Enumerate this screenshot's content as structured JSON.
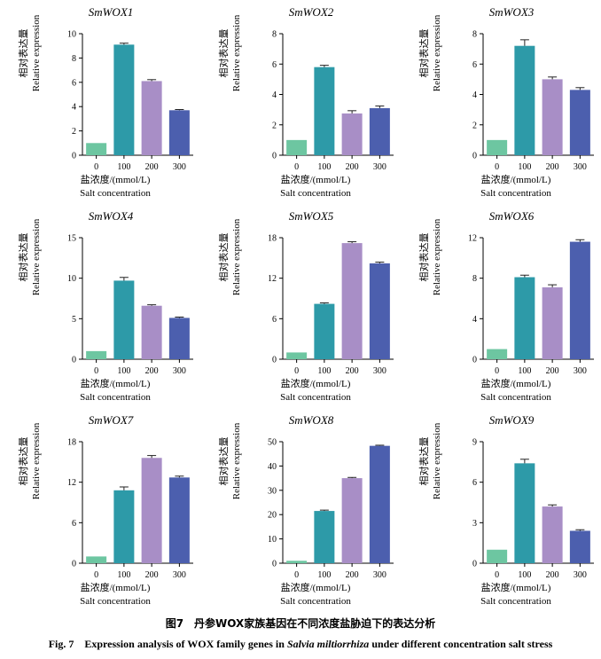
{
  "figure": {
    "caption_cn": "图7　丹参WOX家族基因在不同浓度盐胁迫下的表达分析",
    "caption_en_prefix": "Fig. 7　Expression analysis of WOX family genes in ",
    "caption_en_species": "Salvia miltiorrhiza",
    "caption_en_suffix": " under different concentration salt stress",
    "ylabel_cn": "相对表达量",
    "ylabel_en": "Relative expression",
    "xlabel_cn": "盐浓度/(mmol/L)",
    "xlabel_en": "Salt concentration",
    "bar_colors": [
      "#6dc6a1",
      "#2d9aa8",
      "#a88ec6",
      "#4c5fae"
    ]
  },
  "chart_data": [
    {
      "type": "bar",
      "title": "SmWOX1",
      "categories": [
        "0",
        "100",
        "200",
        "300"
      ],
      "values": [
        1.0,
        9.1,
        6.1,
        3.7
      ],
      "errors": [
        0.0,
        0.12,
        0.12,
        0.06
      ],
      "ylim": [
        0,
        10
      ],
      "yticks": [
        0,
        2,
        4,
        6,
        8,
        10
      ]
    },
    {
      "type": "bar",
      "title": "SmWOX2",
      "categories": [
        "0",
        "100",
        "200",
        "300"
      ],
      "values": [
        1.0,
        5.8,
        2.75,
        3.1
      ],
      "errors": [
        0.0,
        0.12,
        0.18,
        0.14
      ],
      "ylim": [
        0,
        8
      ],
      "yticks": [
        0,
        2,
        4,
        6,
        8
      ]
    },
    {
      "type": "bar",
      "title": "SmWOX3",
      "categories": [
        "0",
        "100",
        "200",
        "300"
      ],
      "values": [
        1.0,
        7.2,
        5.0,
        4.3
      ],
      "errors": [
        0.0,
        0.4,
        0.15,
        0.15
      ],
      "ylim": [
        0,
        8
      ],
      "yticks": [
        0,
        2,
        4,
        6,
        8
      ]
    },
    {
      "type": "bar",
      "title": "SmWOX4",
      "categories": [
        "0",
        "100",
        "200",
        "300"
      ],
      "values": [
        1.0,
        9.7,
        6.6,
        5.1
      ],
      "errors": [
        0.0,
        0.4,
        0.12,
        0.1
      ],
      "ylim": [
        0,
        15
      ],
      "yticks": [
        0,
        5,
        10,
        15
      ]
    },
    {
      "type": "bar",
      "title": "SmWOX5",
      "categories": [
        "0",
        "100",
        "200",
        "300"
      ],
      "values": [
        1.0,
        8.2,
        17.2,
        14.2
      ],
      "errors": [
        0.0,
        0.15,
        0.2,
        0.18
      ],
      "ylim": [
        0,
        18
      ],
      "yticks": [
        0,
        6,
        12,
        18
      ]
    },
    {
      "type": "bar",
      "title": "SmWOX6",
      "categories": [
        "0",
        "100",
        "200",
        "300"
      ],
      "values": [
        1.0,
        8.1,
        7.1,
        11.6
      ],
      "errors": [
        0.0,
        0.2,
        0.25,
        0.2
      ],
      "ylim": [
        0,
        12
      ],
      "yticks": [
        0,
        4,
        8,
        12
      ]
    },
    {
      "type": "bar",
      "title": "SmWOX7",
      "categories": [
        "0",
        "100",
        "200",
        "300"
      ],
      "values": [
        1.0,
        10.8,
        15.6,
        12.7
      ],
      "errors": [
        0.0,
        0.5,
        0.35,
        0.2
      ],
      "ylim": [
        0,
        18
      ],
      "yticks": [
        0,
        6,
        12,
        18
      ]
    },
    {
      "type": "bar",
      "title": "SmWOX8",
      "categories": [
        "0",
        "100",
        "200",
        "300"
      ],
      "values": [
        1.0,
        21.5,
        35.0,
        48.3
      ],
      "errors": [
        0.0,
        0.35,
        0.3,
        0.25
      ],
      "ylim": [
        0,
        50
      ],
      "yticks": [
        0,
        10,
        20,
        30,
        40,
        50
      ]
    },
    {
      "type": "bar",
      "title": "SmWOX9",
      "categories": [
        "0",
        "100",
        "200",
        "300"
      ],
      "values": [
        1.0,
        7.4,
        4.2,
        2.4
      ],
      "errors": [
        0.0,
        0.3,
        0.12,
        0.08
      ],
      "ylim": [
        0,
        9
      ],
      "yticks": [
        0,
        3,
        6,
        9
      ]
    }
  ]
}
